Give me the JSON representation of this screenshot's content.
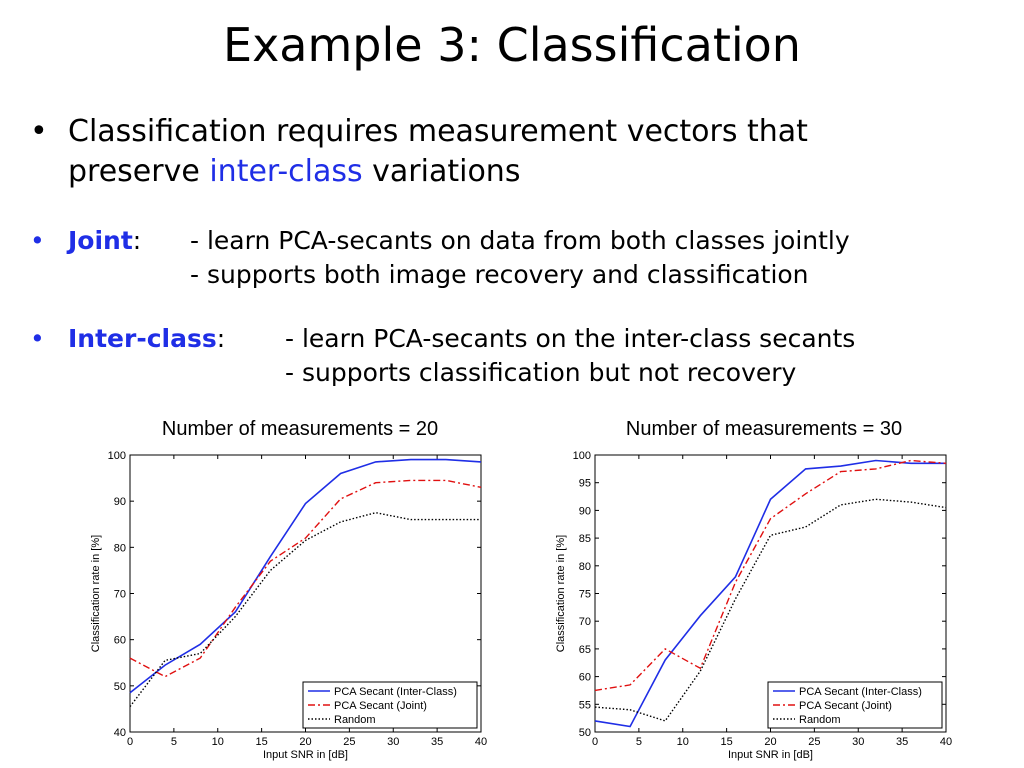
{
  "slide": {
    "title": "Example 3: Classification",
    "bullet1": {
      "pre": "Classification requires measurement vectors that",
      "line2_pre": "preserve ",
      "highlight": "inter-class",
      "line2_post": " variations"
    },
    "bullet2": {
      "label": "Joint",
      "colon": ":",
      "lines": [
        "- learn PCA-secants on data from both classes jointly",
        "- supports both image recovery and classification"
      ]
    },
    "bullet3": {
      "label": "Inter-class",
      "colon": ":",
      "lines": [
        "- learn PCA-secants on the inter-class secants",
        "- supports classification but not recovery"
      ]
    },
    "bullet_glyph": "•"
  },
  "colors": {
    "inter_class": "#1f2ee6",
    "joint": "#e01010",
    "random": "#000000",
    "accent": "#1f2ee6"
  },
  "chart_data": [
    {
      "type": "line",
      "title": "Number of measurements = 20",
      "xlabel": "Input SNR in [dB]",
      "ylabel": "Classification rate in [%]",
      "xlim": [
        0,
        40
      ],
      "ylim": [
        40,
        100
      ],
      "xticks": [
        0,
        5,
        10,
        15,
        20,
        25,
        30,
        35,
        40
      ],
      "yticks": [
        40,
        50,
        60,
        70,
        80,
        90,
        100
      ],
      "legend": "bottom-right",
      "x": [
        0,
        4,
        8,
        12,
        16,
        20,
        24,
        28,
        32,
        36,
        40
      ],
      "series": [
        {
          "name": "PCA Secant (Inter-Class)",
          "style": "solid",
          "color": "#1f2ee6",
          "values": [
            48.5,
            54.5,
            59,
            66,
            78,
            89.5,
            96,
            98.5,
            99,
            99,
            98.5
          ]
        },
        {
          "name": "PCA Secant (Joint)",
          "style": "dashdot",
          "color": "#e01010",
          "values": [
            56,
            52,
            56,
            67,
            77,
            82,
            90.5,
            94,
            94.5,
            94.5,
            93
          ]
        },
        {
          "name": "Random",
          "style": "dotted",
          "color": "#000000",
          "values": [
            45.5,
            55.5,
            57,
            65,
            75,
            81.5,
            85.5,
            87.5,
            86,
            86,
            86
          ]
        }
      ]
    },
    {
      "type": "line",
      "title": "Number of measurements = 30",
      "xlabel": "Input SNR in [dB]",
      "ylabel": "Classification rate in [%]",
      "xlim": [
        0,
        40
      ],
      "ylim": [
        50,
        100
      ],
      "xticks": [
        0,
        5,
        10,
        15,
        20,
        25,
        30,
        35,
        40
      ],
      "yticks": [
        50,
        55,
        60,
        65,
        70,
        75,
        80,
        85,
        90,
        95,
        100
      ],
      "legend": "bottom-right",
      "x": [
        0,
        4,
        8,
        12,
        16,
        20,
        24,
        28,
        32,
        36,
        40
      ],
      "series": [
        {
          "name": "PCA Secant (Inter-Class)",
          "style": "solid",
          "color": "#1f2ee6",
          "values": [
            52,
            51,
            63,
            71,
            78,
            92,
            97.5,
            98,
            99,
            98.5,
            98.5
          ]
        },
        {
          "name": "PCA Secant (Joint)",
          "style": "dashdot",
          "color": "#e01010",
          "values": [
            57.5,
            58.5,
            65,
            61.5,
            77,
            88.5,
            93,
            97,
            97.5,
            99,
            98.5
          ]
        },
        {
          "name": "Random",
          "style": "dotted",
          "color": "#000000",
          "values": [
            54.5,
            54,
            52,
            61,
            74,
            85.5,
            87,
            91,
            92,
            91.5,
            90.5
          ]
        }
      ]
    }
  ]
}
